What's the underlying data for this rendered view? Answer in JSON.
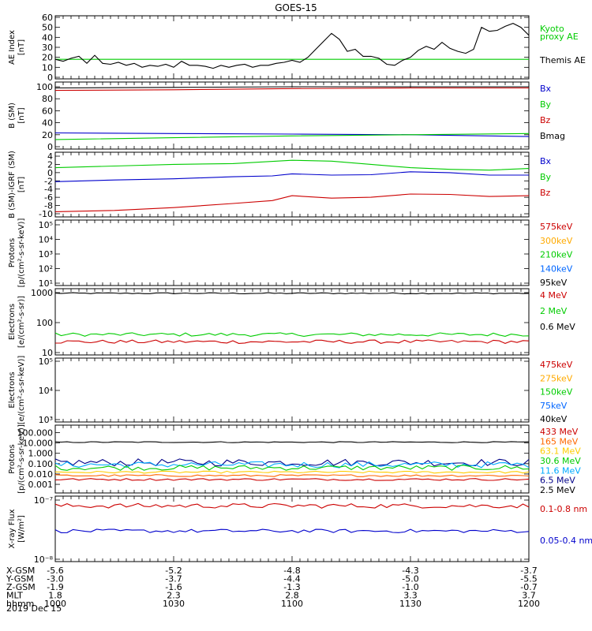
{
  "page_title": "GOES-15",
  "chart_data": [
    {
      "id": "ae",
      "type": "line",
      "ylabel": [
        "AE Index",
        "[nT]"
      ],
      "ylim": [
        0,
        60
      ],
      "yticks": [
        "0",
        "10",
        "20",
        "30",
        "40",
        "50",
        "60"
      ],
      "ytickvals": [
        0,
        10,
        20,
        30,
        40,
        50,
        60
      ],
      "legend": [
        {
          "text": "Kyoto",
          "color": "#00cc00"
        },
        {
          "text": "proxy AE",
          "color": "#00cc00"
        },
        {
          "text": "Themis AE",
          "color": "#000000"
        }
      ],
      "series": [
        {
          "name": "Kyoto proxy AE",
          "color": "#00cc00",
          "x": [
            0,
            120
          ],
          "values": [
            18,
            18
          ]
        },
        {
          "name": "Themis AE",
          "color": "#000000",
          "x": [
            0,
            2,
            4,
            6,
            8,
            10,
            12,
            14,
            16,
            18,
            20,
            22,
            24,
            26,
            28,
            30,
            32,
            34,
            36,
            38,
            40,
            42,
            44,
            46,
            48,
            50,
            52,
            54,
            56,
            58,
            60,
            62,
            64,
            66,
            68,
            70,
            72,
            74,
            76,
            78,
            80,
            82,
            84,
            86,
            88,
            90,
            92,
            94,
            96,
            98,
            100,
            102,
            104,
            106,
            108,
            110,
            112,
            114,
            116,
            118,
            120
          ],
          "values": [
            18,
            16,
            19,
            21,
            14,
            22,
            14,
            13,
            15,
            12,
            14,
            10,
            12,
            11,
            13,
            10,
            16,
            12,
            12,
            11,
            9,
            12,
            10,
            12,
            13,
            10,
            12,
            12,
            14,
            15,
            17,
            15,
            20,
            28,
            36,
            44,
            38,
            26,
            28,
            21,
            21,
            19,
            13,
            12,
            17,
            20,
            27,
            31,
            28,
            35,
            29,
            26,
            24,
            28,
            50,
            46,
            47,
            51,
            54,
            50,
            42
          ]
        }
      ]
    },
    {
      "id": "bsm",
      "type": "line",
      "ylabel": [
        "B (SM)",
        "[nT]"
      ],
      "ylim": [
        0,
        100
      ],
      "yticks": [
        "0",
        "20",
        "40",
        "60",
        "80",
        "100"
      ],
      "ytickvals": [
        0,
        20,
        40,
        60,
        80,
        100
      ],
      "legend": [
        {
          "text": "Bx",
          "color": "#0000cc"
        },
        {
          "text": "By",
          "color": "#00cc00"
        },
        {
          "text": "Bz",
          "color": "#cc0000"
        },
        {
          "text": "Bmag",
          "color": "#000000"
        }
      ],
      "series": [
        {
          "name": "Bmag",
          "color": "#000000",
          "x": [
            0,
            30,
            60,
            90,
            120
          ],
          "values": [
            98,
            99,
            100,
            100,
            100
          ]
        },
        {
          "name": "Bz",
          "color": "#cc0000",
          "x": [
            0,
            30,
            60,
            90,
            120
          ],
          "values": [
            94,
            95,
            97,
            98,
            98
          ]
        },
        {
          "name": "Bx",
          "color": "#0000cc",
          "x": [
            0,
            30,
            60,
            90,
            120
          ],
          "values": [
            23,
            22,
            21,
            20,
            17
          ]
        },
        {
          "name": "By",
          "color": "#00cc00",
          "x": [
            0,
            30,
            60,
            90,
            120
          ],
          "values": [
            12,
            15,
            18,
            20,
            22
          ]
        }
      ]
    },
    {
      "id": "bigrf",
      "type": "line",
      "ylabel": [
        "B (SM)-IGRF (SM)",
        "[nT]"
      ],
      "ylim": [
        -10,
        4
      ],
      "yticks": [
        "4",
        "2",
        "0",
        "-2",
        "-4",
        "-6",
        "-8",
        "-10"
      ],
      "ytickvals": [
        4,
        2,
        0,
        -2,
        -4,
        -6,
        -8,
        -10
      ],
      "legend": [
        {
          "text": "Bx",
          "color": "#0000cc"
        },
        {
          "text": "By",
          "color": "#00cc00"
        },
        {
          "text": "Bz",
          "color": "#cc0000"
        }
      ],
      "series": [
        {
          "name": "By",
          "color": "#00cc00",
          "x": [
            0,
            15,
            30,
            45,
            60,
            70,
            80,
            90,
            100,
            110,
            120
          ],
          "values": [
            1.2,
            1.6,
            2.0,
            2.2,
            3.0,
            2.8,
            2.0,
            1.2,
            0.8,
            0.6,
            1.0
          ]
        },
        {
          "name": "Bx",
          "color": "#0000cc",
          "x": [
            0,
            15,
            30,
            45,
            55,
            60,
            70,
            80,
            90,
            100,
            110,
            120
          ],
          "values": [
            -2.2,
            -1.8,
            -1.5,
            -1.0,
            -0.8,
            -0.3,
            -0.6,
            -0.5,
            0.2,
            0.0,
            -0.6,
            -0.6
          ]
        },
        {
          "name": "Bz",
          "color": "#cc0000",
          "x": [
            0,
            15,
            30,
            45,
            55,
            60,
            70,
            80,
            90,
            100,
            110,
            120
          ],
          "values": [
            -9.5,
            -9.2,
            -8.5,
            -7.5,
            -6.8,
            -5.6,
            -6.2,
            -6.0,
            -5.2,
            -5.3,
            -5.8,
            -5.6
          ]
        }
      ]
    },
    {
      "id": "protons_low",
      "type": "line",
      "ylabel": [
        "Protons",
        "[p/(cm²-s-sr-keV)]"
      ],
      "ylim": [
        1,
        5
      ],
      "log": true,
      "yticks": [
        "10¹",
        "10²",
        "10³",
        "10⁴",
        "10⁵"
      ],
      "ytickvals": [
        1,
        2,
        3,
        4,
        5
      ],
      "legend": [
        {
          "text": "575keV",
          "color": "#cc0000"
        },
        {
          "text": "300keV",
          "color": "#ffaa00"
        },
        {
          "text": "210keV",
          "color": "#00cc00"
        },
        {
          "text": "140keV",
          "color": "#0066ff"
        },
        {
          "text": "95keV",
          "color": "#000000"
        }
      ],
      "series": []
    },
    {
      "id": "electrons_high",
      "type": "line",
      "ylabel": [
        "Electrons",
        "[e/(cm²-s-sr)]"
      ],
      "ylim": [
        10,
        1000
      ],
      "log": true,
      "yticks": [
        "10",
        "100",
        "1000"
      ],
      "ytickvals": [
        10,
        100,
        1000
      ],
      "legend": [
        {
          "text": "4 MeV",
          "color": "#cc0000"
        },
        {
          "text": "2 MeV",
          "color": "#00cc00"
        },
        {
          "text": "0.6 MeV",
          "color": "#000000"
        }
      ],
      "series": [
        {
          "name": "0.6 MeV",
          "color": "#000000",
          "x": [
            0,
            120
          ],
          "values": [
            950,
            950
          ],
          "jitter": 0.02
        },
        {
          "name": "2 MeV",
          "color": "#00cc00",
          "x": [
            0,
            120
          ],
          "values": [
            40,
            40
          ],
          "jitter": 0.06
        },
        {
          "name": "4 MeV",
          "color": "#cc0000",
          "x": [
            0,
            120
          ],
          "values": [
            23,
            23
          ],
          "jitter": 0.06
        }
      ]
    },
    {
      "id": "electrons_low",
      "type": "line",
      "ylabel": [
        "Electrons",
        "[e/(cm²-s-sr-keV)]"
      ],
      "ylim": [
        3,
        5
      ],
      "log": true,
      "yticks": [
        "10³",
        "10⁴",
        "10⁵"
      ],
      "ytickvals": [
        3,
        4,
        5
      ],
      "legend": [
        {
          "text": "475keV",
          "color": "#cc0000"
        },
        {
          "text": "275keV",
          "color": "#ffaa00"
        },
        {
          "text": "150keV",
          "color": "#00cc00"
        },
        {
          "text": "75keV",
          "color": "#0066ff"
        },
        {
          "text": "40keV",
          "color": "#000000"
        }
      ],
      "series": []
    },
    {
      "id": "protons_high",
      "type": "line",
      "ylabel": [
        "Protons",
        "[p/(cm²-s-sr-keV)]"
      ],
      "ylim": [
        0.0005,
        130
      ],
      "log": true,
      "yticks": [
        "0.001",
        "0.010",
        "0.100",
        "1.000",
        "10.000",
        "100.000"
      ],
      "ytickvals": [
        0.001,
        0.01,
        0.1,
        1,
        10,
        100
      ],
      "legend": [
        {
          "text": "433 MeV",
          "color": "#cc0000"
        },
        {
          "text": "165 MeV",
          "color": "#ff6600"
        },
        {
          "text": "63.1 MeV",
          "color": "#ffcc00"
        },
        {
          "text": "30.6 MeV",
          "color": "#00cc00"
        },
        {
          "text": "11.6 MeV",
          "color": "#00aaff"
        },
        {
          "text": "6.5 MeV",
          "color": "#000088"
        },
        {
          "text": "2.5 MeV",
          "color": "#000000"
        }
      ],
      "series": [
        {
          "name": "2.5 MeV",
          "color": "#000000",
          "x": [
            0,
            120
          ],
          "values": [
            12,
            12
          ],
          "jitter": 0.05
        },
        {
          "name": "6.5 MeV",
          "color": "#000088",
          "x": [
            0,
            120
          ],
          "values": [
            0.13,
            0.13
          ],
          "jitter": 0.35
        },
        {
          "name": "11.6 MeV",
          "color": "#00aaff",
          "x": [
            0,
            120
          ],
          "values": [
            0.08,
            0.08
          ],
          "jitter": 0.3
        },
        {
          "name": "30.6 MeV",
          "color": "#00cc00",
          "x": [
            0,
            120
          ],
          "values": [
            0.04,
            0.04
          ],
          "jitter": 0.25
        },
        {
          "name": "63.1 MeV",
          "color": "#ffcc00",
          "x": [
            0,
            120
          ],
          "values": [
            0.015,
            0.015
          ],
          "jitter": 0.1
        },
        {
          "name": "165 MeV",
          "color": "#ff6600",
          "x": [
            0,
            120
          ],
          "values": [
            0.007,
            0.007
          ],
          "jitter": 0.1
        },
        {
          "name": "433 MeV",
          "color": "#cc0000",
          "x": [
            0,
            120
          ],
          "values": [
            0.003,
            0.003
          ],
          "jitter": 0.1
        }
      ]
    },
    {
      "id": "xray",
      "type": "line",
      "ylabel": [
        "X-ray Flux",
        "[W/m²]"
      ],
      "ylim": [
        1e-08,
        1e-07
      ],
      "log": true,
      "yticks": [
        "10⁻⁷",
        "10⁻⁸"
      ],
      "ytickvals": [
        1e-07,
        1e-08
      ],
      "legend": [
        {
          "text": "0.1-0.8 nm",
          "color": "#cc0000"
        },
        {
          "text": "0.05-0.4 nm",
          "color": "#0000cc"
        }
      ],
      "series": [
        {
          "name": "0.1-0.8 nm",
          "color": "#cc0000",
          "x": [
            0,
            120
          ],
          "values": [
            8e-08,
            8e-08
          ],
          "jitter": 0.04
        },
        {
          "name": "0.05-0.4 nm",
          "color": "#0000cc",
          "x": [
            0,
            120
          ],
          "values": [
            3e-08,
            3e-08
          ],
          "jitter": 0.03
        }
      ]
    }
  ],
  "footer": {
    "rows": [
      {
        "label": "X-GSM",
        "values": [
          "-5.6",
          "-5.2",
          "-4.8",
          "-4.3",
          "-3.7"
        ]
      },
      {
        "label": "Y-GSM",
        "values": [
          "-3.0",
          "-3.7",
          "-4.4",
          "-5.0",
          "-5.5"
        ]
      },
      {
        "label": "Z-GSM",
        "values": [
          "-1.9",
          "-1.6",
          "-1.3",
          "-1.0",
          "-0.7"
        ]
      },
      {
        "label": "MLT",
        "values": [
          "1.8",
          "2.3",
          "2.8",
          "3.3",
          "3.7"
        ]
      },
      {
        "label": "hhmm",
        "values": [
          "1000",
          "1030",
          "1100",
          "1130",
          "1200"
        ]
      }
    ],
    "date": "2019 Dec 15"
  }
}
